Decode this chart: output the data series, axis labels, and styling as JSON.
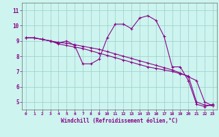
{
  "xlabel": "Windchill (Refroidissement éolien,°C)",
  "ylabel": "",
  "background_color": "#cdf4ee",
  "line_color": "#880088",
  "grid_color": "#99cccc",
  "axis_color": "#666666",
  "xlim": [
    -0.5,
    23.5
  ],
  "ylim": [
    4.5,
    11.5
  ],
  "xticks": [
    0,
    1,
    2,
    3,
    4,
    5,
    6,
    7,
    8,
    9,
    10,
    11,
    12,
    13,
    14,
    15,
    16,
    17,
    18,
    19,
    20,
    21,
    22,
    23
  ],
  "yticks": [
    5,
    6,
    7,
    8,
    9,
    10,
    11
  ],
  "line1_x": [
    0,
    1,
    2,
    3,
    4,
    5,
    6,
    7,
    8,
    9,
    10,
    11,
    12,
    13,
    14,
    15,
    16,
    17,
    18,
    19,
    20,
    21,
    22,
    23
  ],
  "line1_y": [
    9.2,
    9.2,
    9.1,
    9.0,
    8.85,
    9.0,
    8.7,
    7.5,
    7.5,
    7.8,
    9.2,
    10.1,
    10.1,
    9.8,
    10.5,
    10.65,
    10.35,
    9.3,
    7.3,
    7.3,
    6.4,
    4.85,
    4.7,
    4.85
  ],
  "line2_x": [
    0,
    1,
    2,
    3,
    4,
    5,
    6,
    7,
    8,
    9,
    10,
    11,
    12,
    13,
    14,
    15,
    16,
    17,
    18,
    19,
    20,
    21,
    22,
    23
  ],
  "line2_y": [
    9.2,
    9.2,
    9.1,
    9.0,
    8.8,
    8.7,
    8.6,
    8.5,
    8.35,
    8.2,
    8.05,
    7.9,
    7.75,
    7.6,
    7.45,
    7.3,
    7.2,
    7.1,
    7.0,
    6.85,
    6.7,
    5.0,
    4.8,
    4.75
  ],
  "line3_x": [
    0,
    1,
    2,
    3,
    4,
    5,
    6,
    7,
    8,
    9,
    10,
    11,
    12,
    13,
    14,
    15,
    16,
    17,
    18,
    19,
    20,
    21,
    22,
    23
  ],
  "line3_y": [
    9.2,
    9.2,
    9.1,
    9.0,
    8.9,
    8.85,
    8.75,
    8.65,
    8.55,
    8.45,
    8.3,
    8.15,
    8.0,
    7.85,
    7.7,
    7.55,
    7.4,
    7.25,
    7.1,
    6.9,
    6.65,
    6.4,
    5.0,
    4.75
  ]
}
